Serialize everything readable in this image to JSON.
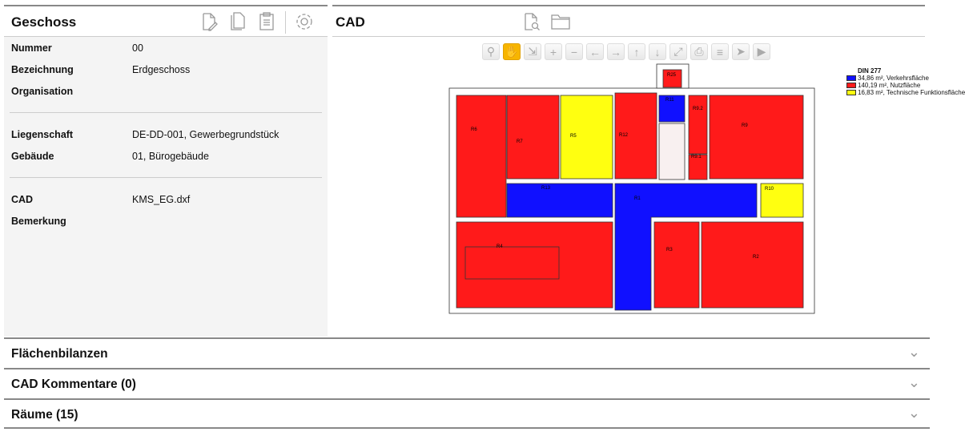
{
  "left": {
    "title": "Geschoss",
    "fields": [
      {
        "label": "Nummer",
        "value": "00"
      },
      {
        "label": "Bezeichnung",
        "value": "Erdgeschoss"
      },
      {
        "label": "Organisation",
        "value": ""
      },
      {
        "label": "Liegenschaft",
        "value": "DE-DD-001, Gewerbegrundstück"
      },
      {
        "label": "Gebäude",
        "value": "01, Bürogebäude"
      },
      {
        "label": "CAD",
        "value": "KMS_EG.dxf"
      },
      {
        "label": "Bemerkung",
        "value": ""
      }
    ],
    "icons": [
      "edit-document-icon",
      "copy-icon",
      "clipboard-icon",
      "gear-icon"
    ]
  },
  "cad": {
    "title": "CAD",
    "icons": [
      "document-search-icon",
      "folder-icon"
    ],
    "toolbar": [
      "zoom",
      "pan",
      "zoom-window",
      "zoom-in",
      "zoom-out",
      "left",
      "right",
      "up",
      "down",
      "fit",
      "print",
      "layers",
      "select",
      "play"
    ],
    "legend": {
      "title": "DIN 277",
      "items": [
        {
          "label": "34,86 m², Verkehrsfläche",
          "color": "#1010ff"
        },
        {
          "label": "140,19 m², Nutzfläche",
          "color": "#ff1a1a"
        },
        {
          "label": "16,83 m², Technische Funktionsfläche",
          "color": "#ffff10"
        }
      ]
    },
    "rooms": [
      "R1",
      "R2",
      "R3",
      "R4",
      "R5",
      "R6",
      "R7",
      "R9",
      "R9.1",
      "R9.2",
      "R10",
      "R11",
      "R12",
      "R13",
      "R25"
    ]
  },
  "sections": [
    {
      "label": "Flächenbilanzen"
    },
    {
      "label": "CAD Kommentare (0)"
    },
    {
      "label": "Räume (15)"
    }
  ]
}
